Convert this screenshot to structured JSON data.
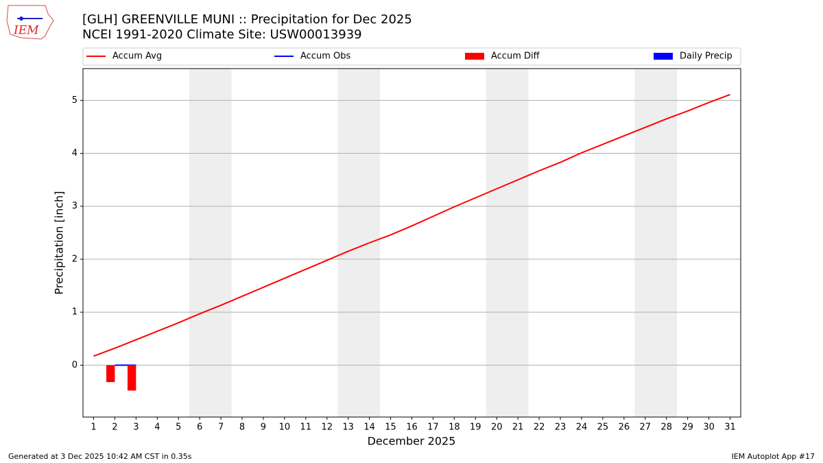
{
  "header": {
    "logo": "IEM"
  },
  "chart_data": {
    "type": "line",
    "title": "[GLH] GREENVILLE MUNI :: Precipitation for Dec 2025",
    "subtitle": "NCEI 1991-2020 Climate Site: USW00013939",
    "xlabel": "December 2025",
    "ylabel": "Precipitation [inch]",
    "x": [
      1,
      2,
      3,
      4,
      5,
      6,
      7,
      8,
      9,
      10,
      11,
      12,
      13,
      14,
      15,
      16,
      17,
      18,
      19,
      20,
      21,
      22,
      23,
      24,
      25,
      26,
      27,
      28,
      29,
      30,
      31
    ],
    "series": [
      {
        "name": "Accum Avg",
        "type": "line",
        "color": "#ff0000",
        "values": [
          0.17,
          0.32,
          0.48,
          0.64,
          0.8,
          0.97,
          1.13,
          1.3,
          1.47,
          1.64,
          1.81,
          1.98,
          2.15,
          2.31,
          2.46,
          2.63,
          2.81,
          2.99,
          3.16,
          3.33,
          3.5,
          3.67,
          3.83,
          4.01,
          4.17,
          4.33,
          4.49,
          4.65,
          4.8,
          4.96,
          5.11
        ]
      },
      {
        "name": "Accum Obs",
        "type": "line",
        "color": "#0000ff",
        "values": [
          null,
          0,
          0,
          null,
          null,
          null,
          null,
          null,
          null,
          null,
          null,
          null,
          null,
          null,
          null,
          null,
          null,
          null,
          null,
          null,
          null,
          null,
          null,
          null,
          null,
          null,
          null,
          null,
          null,
          null,
          null
        ]
      },
      {
        "name": "Accum Diff",
        "type": "bar",
        "color": "#ff0000",
        "values": [
          null,
          -0.32,
          -0.48,
          null,
          null,
          null,
          null,
          null,
          null,
          null,
          null,
          null,
          null,
          null,
          null,
          null,
          null,
          null,
          null,
          null,
          null,
          null,
          null,
          null,
          null,
          null,
          null,
          null,
          null,
          null,
          null
        ]
      },
      {
        "name": "Daily Precip",
        "type": "bar",
        "color": "#0000ff",
        "values": [
          null,
          0,
          0,
          null,
          null,
          null,
          null,
          null,
          null,
          null,
          null,
          null,
          null,
          null,
          null,
          null,
          null,
          null,
          null,
          null,
          null,
          null,
          null,
          null,
          null,
          null,
          null,
          null,
          null,
          null,
          null
        ]
      }
    ],
    "weekend_spans": [
      [
        5.5,
        7.5
      ],
      [
        12.5,
        14.5
      ],
      [
        19.5,
        21.5
      ],
      [
        26.5,
        28.5
      ]
    ],
    "xlim": [
      0.5,
      31.5
    ],
    "xticks": [
      1,
      2,
      3,
      4,
      5,
      6,
      7,
      8,
      9,
      10,
      11,
      12,
      13,
      14,
      15,
      16,
      17,
      18,
      19,
      20,
      21,
      22,
      23,
      24,
      25,
      26,
      27,
      28,
      29,
      30,
      31
    ],
    "ylim": [
      -0.98,
      5.6
    ],
    "yticks": [
      0,
      1,
      2,
      3,
      4,
      5
    ],
    "grid": true
  },
  "footer": {
    "left": "Generated at 3 Dec 2025 10:42 AM CST in 0.35s",
    "right": "IEM Autoplot App #17"
  }
}
